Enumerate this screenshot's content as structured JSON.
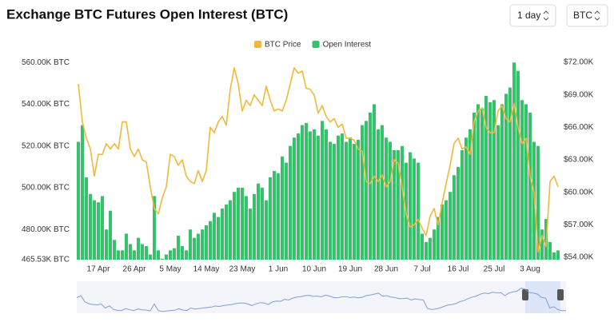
{
  "chart_data": {
    "type": "combo",
    "title": "Exchange BTC Futures Open Interest (BTC)",
    "categories": [
      null,
      null,
      null,
      null,
      null,
      "17 Apr",
      null,
      null,
      null,
      null,
      null,
      null,
      null,
      null,
      "26 Apr",
      null,
      null,
      null,
      null,
      null,
      null,
      null,
      null,
      "5 May",
      null,
      null,
      null,
      null,
      null,
      null,
      null,
      null,
      "14 May",
      null,
      null,
      null,
      null,
      null,
      null,
      null,
      null,
      "23 May",
      null,
      null,
      null,
      null,
      null,
      null,
      null,
      null,
      "1 Jun",
      null,
      null,
      null,
      null,
      null,
      null,
      null,
      null,
      "10 Jun",
      null,
      null,
      null,
      null,
      null,
      null,
      null,
      null,
      "19 Jun",
      null,
      null,
      null,
      null,
      null,
      null,
      null,
      null,
      "28 Jun",
      null,
      null,
      null,
      null,
      null,
      null,
      null,
      null,
      "7 Jul",
      null,
      null,
      null,
      null,
      null,
      null,
      null,
      null,
      "16 Jul",
      null,
      null,
      null,
      null,
      null,
      null,
      null,
      null,
      "25 Jul",
      null,
      null,
      null,
      null,
      null,
      null,
      null,
      null,
      "3 Aug",
      null,
      null,
      null,
      null,
      null,
      null,
      null
    ],
    "series": [
      {
        "name": "BTC Price",
        "type": "line",
        "axis": "y2",
        "color": "#f0b93a",
        "values": [
          70000,
          66500,
          65000,
          64000,
          61500,
          63500,
          63500,
          64500,
          64000,
          64500,
          64000,
          66500,
          66500,
          64000,
          63300,
          64000,
          63000,
          62800,
          60500,
          58500,
          58000,
          59500,
          60500,
          63500,
          63300,
          62500,
          63000,
          61500,
          61000,
          60800,
          62000,
          61000,
          62000,
          66000,
          65500,
          66500,
          67000,
          66200,
          69500,
          71500,
          70000,
          67500,
          68500,
          68000,
          69000,
          68500,
          68000,
          69800,
          68500,
          67500,
          67700,
          67500,
          68500,
          70000,
          71500,
          71000,
          71200,
          69600,
          69500,
          69000,
          67300,
          68000,
          67000,
          66500,
          66800,
          66000,
          66300,
          65000,
          65000,
          64800,
          64000,
          63800,
          61000,
          60800,
          61500,
          61000,
          61600,
          60500,
          61000,
          63000,
          62700,
          60500,
          58000,
          56800,
          57000,
          57500,
          56700,
          56000,
          57800,
          58500,
          57000,
          59000,
          60800,
          62500,
          64500,
          65000,
          64000,
          64200,
          63500,
          66500,
          67500,
          67800,
          66000,
          65500,
          65500,
          67500,
          68000,
          66800,
          66500,
          68200,
          66000,
          64500,
          65000,
          61500,
          60000,
          54500,
          56000,
          55000,
          61000,
          61500,
          60500
        ]
      },
      {
        "name": "Open Interest",
        "type": "bar",
        "color": "#35c26a",
        "values": [
          522000,
          530000,
          505000,
          497000,
          494000,
          493000,
          496000,
          480000,
          489000,
          475000,
          470000,
          470000,
          478000,
          473000,
          470000,
          476000,
          473000,
          472000,
          468000,
          496000,
          470000,
          466000,
          468000,
          470000,
          471000,
          477000,
          472000,
          470000,
          480000,
          476000,
          478000,
          480000,
          482000,
          484000,
          488000,
          486000,
          490000,
          492000,
          494000,
          498000,
          500000,
          500000,
          496000,
          490000,
          497000,
          502000,
          500000,
          494000,
          505000,
          508000,
          507000,
          515000,
          512000,
          520000,
          524000,
          526000,
          530000,
          531000,
          527000,
          528000,
          525000,
          532000,
          528000,
          522000,
          521000,
          525000,
          526000,
          522000,
          524000,
          521000,
          523000,
          530000,
          532000,
          536000,
          540000,
          528000,
          530000,
          524000,
          522000,
          518000,
          518000,
          520000,
          512000,
          517000,
          514000,
          512000,
          478000,
          474000,
          476000,
          480000,
          486000,
          492000,
          494000,
          498000,
          506000,
          510000,
          518000,
          524000,
          528000,
          536000,
          540000,
          538000,
          544000,
          541000,
          542000,
          530000,
          540000,
          545000,
          548000,
          560000,
          556000,
          542000,
          540000,
          536000,
          522000,
          520000,
          480000,
          485000,
          474000,
          469000,
          470000
        ]
      }
    ],
    "ylim": [
      465530,
      562000
    ],
    "yticks": [
      {
        "value": 465530,
        "label": "465.53K BTC"
      },
      {
        "value": 480000,
        "label": "480.00K BTC"
      },
      {
        "value": 500000,
        "label": "500.00K BTC"
      },
      {
        "value": 520000,
        "label": "520.00K BTC"
      },
      {
        "value": 540000,
        "label": "540.00K BTC"
      },
      {
        "value": 560000,
        "label": "560.00K BTC"
      }
    ],
    "y2lim": [
      53780,
      72370
    ],
    "y2ticks": [
      {
        "value": 54000,
        "label": "$54.00K"
      },
      {
        "value": 57000,
        "label": "$57.00K"
      },
      {
        "value": 60000,
        "label": "$60.00K"
      },
      {
        "value": 63000,
        "label": "$63.00K"
      },
      {
        "value": 66000,
        "label": "$66.00K"
      },
      {
        "value": 69000,
        "label": "$69.00K"
      },
      {
        "value": 72000,
        "label": "$72.00K"
      }
    ],
    "legend": "top"
  },
  "controls": {
    "interval": "1 day",
    "unit": "BTC"
  }
}
